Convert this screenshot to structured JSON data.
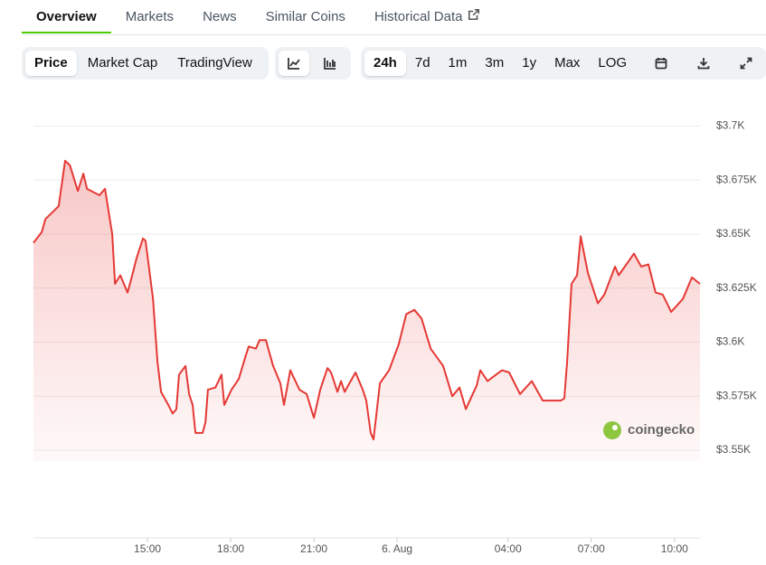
{
  "tabs": [
    {
      "label": "Overview",
      "active": true
    },
    {
      "label": "Markets",
      "active": false
    },
    {
      "label": "News",
      "active": false
    },
    {
      "label": "Similar Coins",
      "active": false
    },
    {
      "label": "Historical Data",
      "active": false
    }
  ],
  "toolbar": {
    "views": [
      {
        "label": "Price",
        "active": true
      },
      {
        "label": "Market Cap",
        "active": false
      },
      {
        "label": "TradingView",
        "active": false
      }
    ],
    "ranges": [
      {
        "label": "24h",
        "active": true
      },
      {
        "label": "7d",
        "active": false
      },
      {
        "label": "1m",
        "active": false
      },
      {
        "label": "3m",
        "active": false
      },
      {
        "label": "1y",
        "active": false
      },
      {
        "label": "Max",
        "active": false
      },
      {
        "label": "LOG",
        "active": false
      }
    ]
  },
  "watermark": "coingecko",
  "chart_data": {
    "type": "line",
    "color": "#e53935",
    "grid": true,
    "x": [
      10.89,
      11.19,
      11.32,
      11.64,
      11.8,
      12.03,
      12.2,
      12.49,
      12.69,
      12.82,
      13.27,
      13.47,
      13.73,
      13.83,
      14.02,
      14.28,
      14.41,
      14.61,
      14.84,
      14.93,
      15.03,
      15.2,
      15.36,
      15.49,
      15.75,
      15.91,
      16.04,
      16.14,
      16.37,
      16.5,
      16.63,
      16.73,
      16.99,
      17.09,
      17.18,
      17.45,
      17.67,
      17.77,
      18.03,
      18.29,
      18.55,
      18.65,
      18.91,
      19.04,
      19.27,
      19.53,
      19.79,
      19.92,
      20.15,
      20.48,
      20.74,
      21.0,
      21.23,
      21.49,
      21.62,
      21.85,
      21.98,
      22.11,
      22.5,
      22.76,
      22.89,
      23.05,
      23.15,
      23.38,
      23.71,
      24.06,
      24.33,
      24.62,
      24.88,
      25.21,
      25.66,
      25.99,
      26.25,
      26.48,
      26.87,
      27.0,
      27.26,
      27.78,
      28.04,
      28.43,
      28.86,
      29.25,
      29.9,
      30.03,
      30.13,
      30.29,
      30.49,
      30.62,
      30.88,
      31.24,
      31.47,
      31.86,
      31.99,
      32.54,
      32.8,
      33.06,
      33.32,
      33.58,
      33.88,
      34.3,
      34.63,
      34.92
    ],
    "values": [
      3646,
      3651,
      3657,
      3661,
      3663,
      3684,
      3682,
      3670,
      3678,
      3671,
      3668,
      3671,
      3650,
      3627,
      3631,
      3623,
      3629,
      3639,
      3648,
      3647,
      3637,
      3620,
      3591,
      3577,
      3571,
      3567,
      3569,
      3585,
      3589,
      3576,
      3571,
      3558,
      3558,
      3563,
      3578,
      3579,
      3585,
      3571,
      3578,
      3583,
      3594,
      3598,
      3597,
      3601,
      3601,
      3589,
      3581,
      3571,
      3587,
      3578,
      3576,
      3565,
      3578,
      3588,
      3586,
      3577,
      3582,
      3577,
      3586,
      3578,
      3573,
      3558,
      3555,
      3581,
      3587,
      3599,
      3613,
      3615,
      3611,
      3597,
      3589,
      3575,
      3579,
      3569,
      3580,
      3587,
      3582,
      3587,
      3586,
      3576,
      3582,
      3573,
      3573,
      3574,
      3591,
      3627,
      3631,
      3649,
      3632,
      3618,
      3622,
      3635,
      3631,
      3641,
      3635,
      3636,
      3623,
      3622,
      3614,
      3620,
      3630,
      3627
    ],
    "xlim": [
      10.89,
      34.92
    ],
    "ylim": [
      3545,
      3704
    ],
    "yticks": [
      {
        "value": 3550,
        "label": "$3.55K"
      },
      {
        "value": 3575,
        "label": "$3.575K"
      },
      {
        "value": 3600,
        "label": "$3.6K"
      },
      {
        "value": 3625,
        "label": "$3.625K"
      },
      {
        "value": 3650,
        "label": "$3.65K"
      },
      {
        "value": 3675,
        "label": "$3.675K"
      },
      {
        "value": 3700,
        "label": "$3.7K"
      }
    ],
    "xticks": [
      {
        "value": 15,
        "label": "15:00"
      },
      {
        "value": 18,
        "label": "18:00"
      },
      {
        "value": 21,
        "label": "21:00"
      },
      {
        "value": 24,
        "label": "6. Aug"
      },
      {
        "value": 28,
        "label": "04:00"
      },
      {
        "value": 31,
        "label": "07:00"
      },
      {
        "value": 34,
        "label": "10:00"
      }
    ]
  }
}
